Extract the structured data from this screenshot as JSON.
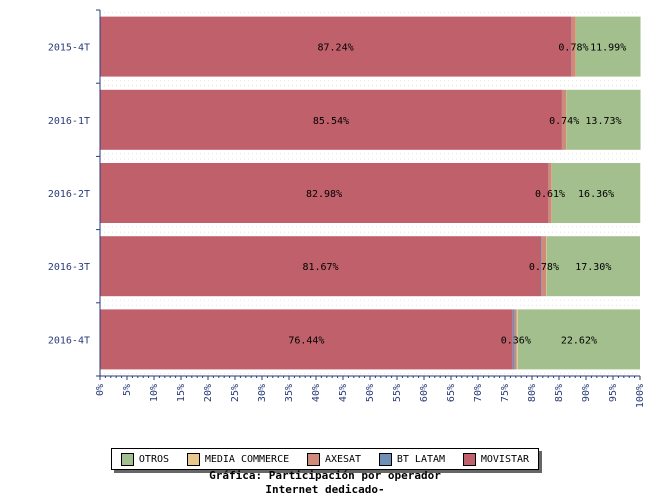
{
  "chart_data": {
    "type": "bar",
    "orientation": "horizontal",
    "stacked": true,
    "categories": [
      "2015-4T",
      "2016-1T",
      "2016-2T",
      "2016-3T",
      "2016-4T"
    ],
    "x_ticks": [
      "0%",
      "5%",
      "10%",
      "15%",
      "20%",
      "25%",
      "30%",
      "35%",
      "40%",
      "45%",
      "50%",
      "55%",
      "60%",
      "65%",
      "70%",
      "75%",
      "80%",
      "85%",
      "90%",
      "95%",
      "100%"
    ],
    "xlim": [
      0,
      100
    ],
    "series": [
      {
        "name": "MOVISTAR",
        "color": "#c0606a",
        "values": [
          87.24,
          85.54,
          82.98,
          81.67,
          76.44
        ],
        "labels": [
          "87.24%",
          "85.54%",
          "82.98%",
          "81.67%",
          "76.44%"
        ]
      },
      {
        "name": "BT LATAM",
        "color": "#6f8fb6",
        "values": [
          0.05,
          0.05,
          0.05,
          0.15,
          0.38
        ],
        "labels": [
          "",
          "",
          "",
          "",
          ""
        ]
      },
      {
        "name": "AXESAT",
        "color": "#d28a78",
        "values": [
          0.78,
          0.74,
          0.61,
          0.78,
          0.36
        ],
        "labels": [
          "0.78%",
          "0.74%",
          "0.61%",
          "0.78%",
          "0.36%"
        ]
      },
      {
        "name": "MEDIA COMMERCE",
        "color": "#e8c88c",
        "values": [
          0.04,
          0.04,
          0.05,
          0.1,
          0.2
        ],
        "labels": [
          "",
          "",
          "",
          "",
          ""
        ]
      },
      {
        "name": "OTROS",
        "color": "#a3bf8e",
        "values": [
          11.99,
          13.73,
          16.36,
          17.3,
          22.62
        ],
        "labels": [
          "11.99%",
          "13.73%",
          "16.36%",
          "17.30%",
          "22.62%"
        ]
      }
    ],
    "legend": {
      "position": "bottom",
      "items": [
        {
          "label": "OTROS",
          "color": "#a3bf8e"
        },
        {
          "label": "MEDIA COMMERCE",
          "color": "#e8c88c"
        },
        {
          "label": "AXESAT",
          "color": "#d28a78"
        },
        {
          "label": "BT LATAM",
          "color": "#6f8fb6"
        },
        {
          "label": "MOVISTAR",
          "color": "#c0606a"
        }
      ]
    },
    "title": "Gráfica: Participación por operador",
    "subtitle": "Internet dedicado-",
    "grid": true
  }
}
